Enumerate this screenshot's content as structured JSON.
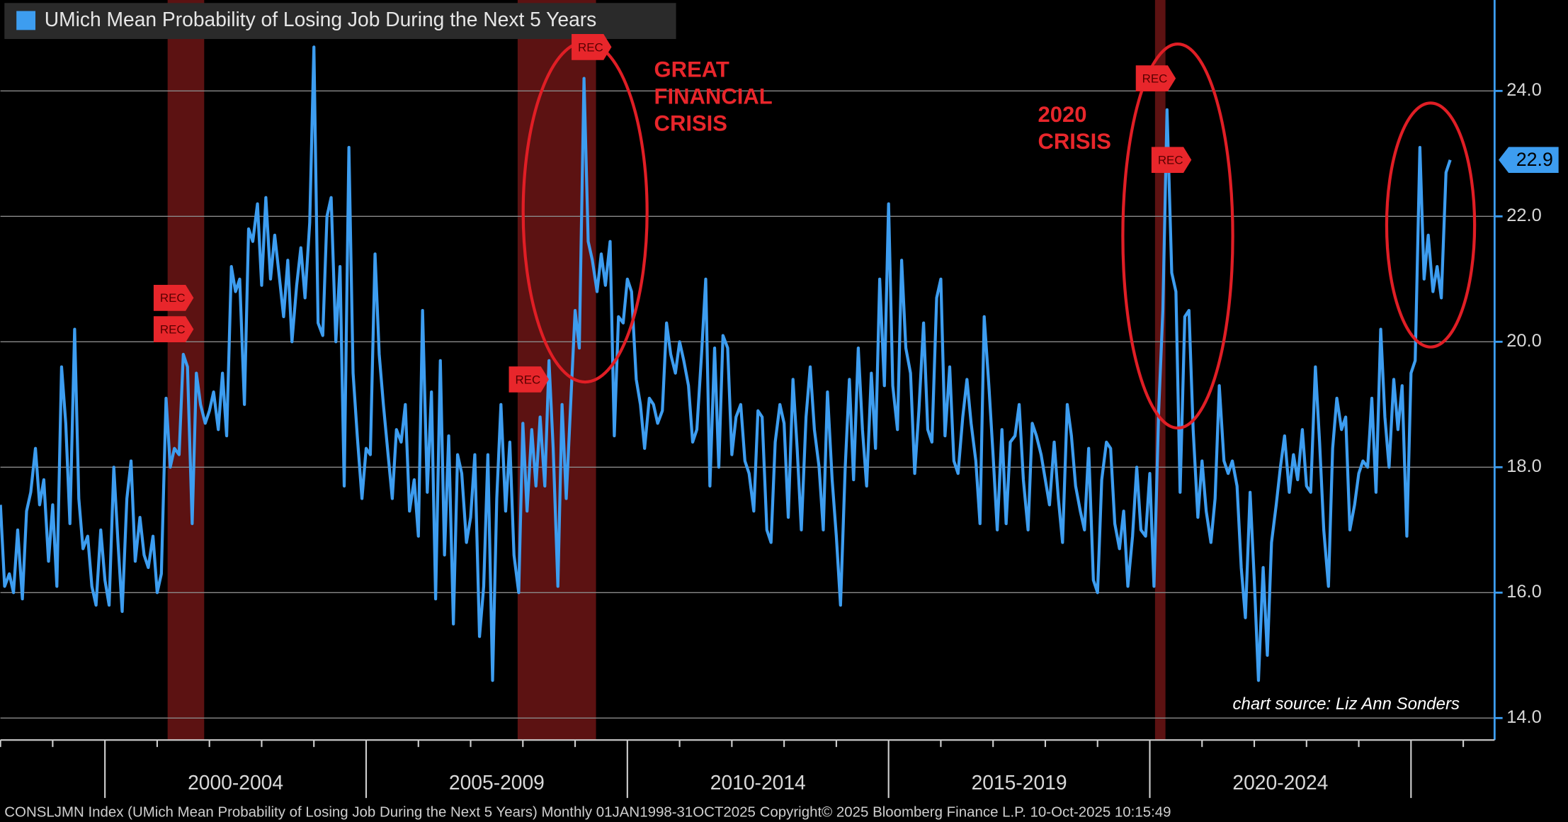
{
  "chart_data": {
    "type": "line",
    "legend_label": "UMich Mean Probability of Losing Job During the Next 5 Years",
    "footer": "CONSLJMN Index (UMich Mean Probability of Losing Job During the Next 5 Years) Monthly 01JAN1998-31OCT2025   Copyright© 2025 Bloomberg Finance L.P.   10-Oct-2025 10:15:49",
    "source": "chart source: Liz Ann Sonders",
    "annotations": [
      {
        "lines": [
          "GREAT",
          "FINANCIAL",
          "CRISIS"
        ]
      },
      {
        "lines": [
          "2020",
          "CRISIS"
        ]
      }
    ],
    "rec_markers": [
      {
        "label": "REC",
        "x": 2001.2,
        "y": 20.7
      },
      {
        "label": "REC",
        "x": 2001.2,
        "y": 20.2
      },
      {
        "label": "REC",
        "x": 2008.0,
        "y": 19.4
      },
      {
        "label": "REC",
        "x": 2009.2,
        "y": 24.7
      },
      {
        "label": "REC",
        "x": 2020.0,
        "y": 24.2
      },
      {
        "label": "REC",
        "x": 2020.3,
        "y": 22.9
      }
    ],
    "shaded_periods": [
      [
        2001.2,
        2001.9
      ],
      [
        2007.9,
        2009.4
      ],
      [
        2020.1,
        2020.3
      ]
    ],
    "xlim": [
      1998,
      2026.6
    ],
    "xticks": [
      2000,
      2005,
      2010,
      2015,
      2020,
      2025
    ],
    "x_periods": [
      "2000-2004",
      "2005-2009",
      "2010-2014",
      "2015-2019",
      "2020-2024"
    ],
    "xminor_ticks": [
      1998,
      1999,
      2001,
      2002,
      2003,
      2004,
      2006,
      2007,
      2008,
      2009,
      2011,
      2012,
      2013,
      2014,
      2016,
      2017,
      2018,
      2019,
      2021,
      2022,
      2023,
      2024,
      2026
    ],
    "ylim": [
      13.65,
      25.45
    ],
    "yticks": [
      {
        "value": 14,
        "label": "14.0"
      },
      {
        "value": 16,
        "label": "16.0"
      },
      {
        "value": 18,
        "label": "18.0"
      },
      {
        "value": 20,
        "label": "20.0"
      },
      {
        "value": 22,
        "label": "22.0"
      },
      {
        "value": 24,
        "label": "24.0"
      }
    ],
    "grid": true,
    "last_label": "22.9",
    "series": [
      {
        "name": "UMich Mean Probability of Losing Job During the Next 5 Years",
        "color": "#3d9df0",
        "x": [
          1998,
          1998.08,
          1998.17,
          1998.25,
          1998.33,
          1998.42,
          1998.5,
          1998.58,
          1998.67,
          1998.75,
          1998.83,
          1998.92,
          1999,
          1999.08,
          1999.17,
          1999.25,
          1999.33,
          1999.42,
          1999.5,
          1999.58,
          1999.67,
          1999.75,
          1999.83,
          1999.92,
          2000,
          2000.08,
          2000.17,
          2000.25,
          2000.33,
          2000.42,
          2000.5,
          2000.58,
          2000.67,
          2000.75,
          2000.83,
          2000.92,
          2001,
          2001.08,
          2001.17,
          2001.25,
          2001.33,
          2001.42,
          2001.5,
          2001.58,
          2001.67,
          2001.75,
          2001.83,
          2001.92,
          2002,
          2002.08,
          2002.17,
          2002.25,
          2002.33,
          2002.42,
          2002.5,
          2002.58,
          2002.67,
          2002.75,
          2002.83,
          2002.92,
          2003,
          2003.08,
          2003.17,
          2003.25,
          2003.33,
          2003.42,
          2003.5,
          2003.58,
          2003.67,
          2003.75,
          2003.83,
          2003.92,
          2004,
          2004.08,
          2004.17,
          2004.25,
          2004.33,
          2004.42,
          2004.5,
          2004.58,
          2004.67,
          2004.75,
          2004.83,
          2004.92,
          2005,
          2005.08,
          2005.17,
          2005.25,
          2005.33,
          2005.42,
          2005.5,
          2005.58,
          2005.67,
          2005.75,
          2005.83,
          2005.92,
          2006,
          2006.08,
          2006.17,
          2006.25,
          2006.33,
          2006.42,
          2006.5,
          2006.58,
          2006.67,
          2006.75,
          2006.83,
          2006.92,
          2007,
          2007.08,
          2007.17,
          2007.25,
          2007.33,
          2007.42,
          2007.5,
          2007.58,
          2007.67,
          2007.75,
          2007.83,
          2007.92,
          2008,
          2008.08,
          2008.17,
          2008.25,
          2008.33,
          2008.42,
          2008.5,
          2008.58,
          2008.67,
          2008.75,
          2008.83,
          2008.92,
          2009,
          2009.08,
          2009.17,
          2009.25,
          2009.33,
          2009.42,
          2009.5,
          2009.58,
          2009.67,
          2009.75,
          2009.83,
          2009.92,
          2010,
          2010.08,
          2010.17,
          2010.25,
          2010.33,
          2010.42,
          2010.5,
          2010.58,
          2010.67,
          2010.75,
          2010.83,
          2010.92,
          2011,
          2011.08,
          2011.17,
          2011.25,
          2011.33,
          2011.42,
          2011.5,
          2011.58,
          2011.67,
          2011.75,
          2011.83,
          2011.92,
          2012,
          2012.08,
          2012.17,
          2012.25,
          2012.33,
          2012.42,
          2012.5,
          2012.58,
          2012.67,
          2012.75,
          2012.83,
          2012.92,
          2013,
          2013.08,
          2013.17,
          2013.25,
          2013.33,
          2013.42,
          2013.5,
          2013.58,
          2013.67,
          2013.75,
          2013.83,
          2013.92,
          2014,
          2014.08,
          2014.17,
          2014.25,
          2014.33,
          2014.42,
          2014.5,
          2014.58,
          2014.67,
          2014.75,
          2014.83,
          2014.92,
          2015,
          2015.08,
          2015.17,
          2015.25,
          2015.33,
          2015.42,
          2015.5,
          2015.58,
          2015.67,
          2015.75,
          2015.83,
          2015.92,
          2016,
          2016.08,
          2016.17,
          2016.25,
          2016.33,
          2016.42,
          2016.5,
          2016.58,
          2016.67,
          2016.75,
          2016.83,
          2016.92,
          2017,
          2017.08,
          2017.17,
          2017.25,
          2017.33,
          2017.42,
          2017.5,
          2017.58,
          2017.67,
          2017.75,
          2017.83,
          2017.92,
          2018,
          2018.08,
          2018.17,
          2018.25,
          2018.33,
          2018.42,
          2018.5,
          2018.58,
          2018.67,
          2018.75,
          2018.83,
          2018.92,
          2019,
          2019.08,
          2019.17,
          2019.25,
          2019.33,
          2019.42,
          2019.5,
          2019.58,
          2019.67,
          2019.75,
          2019.83,
          2019.92,
          2020,
          2020.08,
          2020.17,
          2020.25,
          2020.33,
          2020.42,
          2020.5,
          2020.58,
          2020.67,
          2020.75,
          2020.83,
          2020.92,
          2021,
          2021.08,
          2021.17,
          2021.25,
          2021.33,
          2021.42,
          2021.5,
          2021.58,
          2021.67,
          2021.75,
          2021.83,
          2021.92,
          2022,
          2022.08,
          2022.17,
          2022.25,
          2022.33,
          2022.42,
          2022.5,
          2022.58,
          2022.67,
          2022.75,
          2022.83,
          2022.92,
          2023,
          2023.08,
          2023.17,
          2023.25,
          2023.33,
          2023.42,
          2023.5,
          2023.58,
          2023.67,
          2023.75,
          2023.83,
          2023.92,
          2024,
          2024.08,
          2024.17,
          2024.25,
          2024.33,
          2024.42,
          2024.5,
          2024.58,
          2024.67,
          2024.75,
          2024.83,
          2024.92,
          2025,
          2025.08,
          2025.17,
          2025.25,
          2025.33,
          2025.42,
          2025.5,
          2025.58,
          2025.67,
          2025.75
        ],
        "values": [
          17.4,
          16.1,
          16.3,
          16.0,
          17.0,
          15.9,
          17.3,
          17.6,
          18.3,
          17.4,
          17.8,
          16.5,
          17.4,
          16.1,
          19.6,
          18.7,
          17.1,
          20.2,
          17.5,
          16.7,
          16.9,
          16.1,
          15.8,
          17.0,
          16.2,
          15.8,
          18.0,
          16.8,
          15.7,
          17.5,
          18.1,
          16.5,
          17.2,
          16.6,
          16.4,
          16.9,
          16.0,
          16.3,
          19.1,
          18.0,
          18.3,
          18.2,
          19.8,
          19.6,
          17.1,
          19.5,
          19.0,
          18.7,
          18.9,
          19.2,
          18.6,
          19.5,
          18.5,
          21.2,
          20.8,
          21.0,
          19.0,
          21.8,
          21.6,
          22.2,
          20.9,
          22.3,
          21.0,
          21.7,
          21.1,
          20.4,
          21.3,
          20.0,
          20.9,
          21.5,
          20.7,
          21.9,
          24.7,
          20.3,
          20.1,
          22.0,
          22.3,
          20.0,
          21.2,
          17.7,
          23.1,
          19.5,
          18.5,
          17.5,
          18.3,
          18.2,
          21.4,
          19.8,
          19.0,
          18.2,
          17.5,
          18.6,
          18.4,
          19.0,
          17.3,
          17.8,
          16.9,
          20.5,
          17.6,
          19.2,
          15.9,
          19.7,
          16.6,
          18.5,
          15.5,
          18.2,
          17.9,
          16.8,
          17.2,
          18.2,
          15.3,
          16.1,
          18.2,
          14.6,
          17.5,
          19.0,
          17.3,
          18.4,
          16.6,
          16.0,
          18.7,
          17.3,
          18.6,
          17.7,
          18.8,
          17.7,
          19.7,
          18.3,
          16.1,
          19.0,
          17.5,
          19.1,
          20.5,
          19.9,
          24.2,
          21.6,
          21.3,
          20.8,
          21.4,
          20.9,
          21.6,
          18.5,
          20.4,
          20.3,
          21.0,
          20.8,
          19.4,
          19.0,
          18.3,
          19.1,
          19.0,
          18.7,
          18.9,
          20.3,
          19.8,
          19.5,
          20.0,
          19.7,
          19.3,
          18.4,
          18.6,
          19.8,
          21.0,
          17.7,
          19.9,
          18.0,
          20.1,
          19.9,
          18.2,
          18.8,
          19.0,
          18.1,
          17.9,
          17.3,
          18.9,
          18.8,
          17.0,
          16.8,
          18.4,
          19.0,
          18.7,
          17.2,
          19.4,
          18.3,
          17.0,
          18.8,
          19.6,
          18.6,
          18.0,
          17.0,
          19.2,
          17.8,
          16.9,
          15.8,
          18.0,
          19.4,
          17.8,
          19.9,
          18.6,
          17.7,
          19.5,
          18.3,
          21.0,
          19.3,
          22.2,
          19.3,
          18.6,
          21.3,
          19.9,
          19.5,
          17.9,
          18.9,
          20.3,
          18.6,
          18.4,
          20.7,
          21.0,
          18.5,
          19.6,
          18.1,
          17.9,
          18.8,
          19.4,
          18.7,
          18.1,
          17.1,
          20.4,
          19.3,
          18.2,
          17.0,
          18.6,
          17.1,
          18.4,
          18.5,
          19.0,
          17.8,
          17.0,
          18.7,
          18.5,
          18.2,
          17.8,
          17.4,
          18.4,
          17.5,
          16.8,
          19.0,
          18.5,
          17.7,
          17.3,
          17.0,
          18.3,
          16.2,
          16.0,
          17.8,
          18.4,
          18.3,
          17.1,
          16.7,
          17.3,
          16.1,
          16.9,
          18.0,
          17.0,
          16.9,
          17.9,
          16.1,
          18.9,
          20.5,
          23.7,
          21.1,
          20.8,
          17.6,
          20.4,
          20.5,
          18.6,
          17.2,
          18.1,
          17.3,
          16.8,
          17.5,
          19.3,
          18.1,
          17.9,
          18.1,
          17.7,
          16.4,
          15.6,
          17.6,
          16.2,
          14.6,
          16.4,
          15.0,
          16.8,
          17.4,
          18.0,
          18.5,
          17.6,
          18.2,
          17.8,
          18.6,
          17.7,
          17.6,
          19.6,
          18.4,
          17.0,
          16.1,
          18.3,
          19.1,
          18.6,
          18.8,
          17.0,
          17.4,
          17.9,
          18.1,
          18.0,
          19.1,
          17.6,
          20.2,
          18.8,
          18.0,
          19.4,
          18.6,
          19.3,
          16.9,
          19.5,
          19.7,
          23.1,
          21.0,
          21.7,
          20.8,
          21.2,
          20.7,
          22.7,
          22.9
        ]
      }
    ]
  }
}
